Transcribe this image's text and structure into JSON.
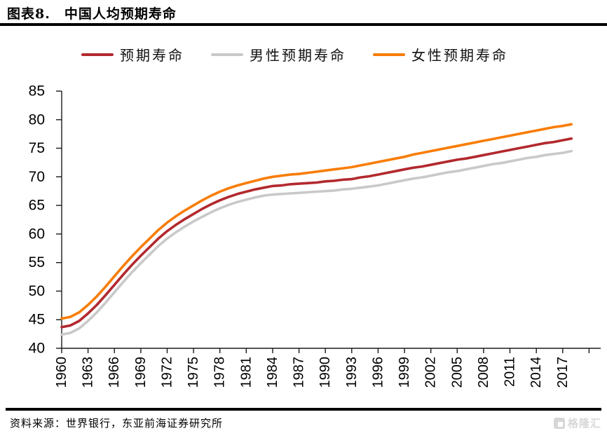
{
  "header": {
    "title": "图表8.　中国人均预期寿命"
  },
  "legend": {
    "items": [
      {
        "label": "预期寿命",
        "color": "#b2292e"
      },
      {
        "label": "男性预期寿命",
        "color": "#c9c9c9"
      },
      {
        "label": "女性预期寿命",
        "color": "#f87d06"
      }
    ]
  },
  "chart_data": {
    "type": "line",
    "title": "中国人均预期寿命",
    "xlabel": "",
    "ylabel": "",
    "ylim": [
      40,
      85
    ],
    "ytick_step": 5,
    "x_tick_labels": [
      "1960",
      "1963",
      "1966",
      "1969",
      "1972",
      "1975",
      "1978",
      "1981",
      "1984",
      "1987",
      "1990",
      "1993",
      "1996",
      "1999",
      "2002",
      "2005",
      "2008",
      "2011",
      "2014",
      "2017"
    ],
    "extra_unlabeled_tick_year": 2020,
    "grid": false,
    "legend_position": "top",
    "x": [
      1960,
      1961,
      1962,
      1963,
      1964,
      1965,
      1966,
      1967,
      1968,
      1969,
      1970,
      1971,
      1972,
      1973,
      1974,
      1975,
      1976,
      1977,
      1978,
      1979,
      1980,
      1981,
      1982,
      1983,
      1984,
      1985,
      1986,
      1987,
      1988,
      1989,
      1990,
      1991,
      1992,
      1993,
      1994,
      1995,
      1996,
      1997,
      1998,
      1999,
      2000,
      2001,
      2002,
      2003,
      2004,
      2005,
      2006,
      2007,
      2008,
      2009,
      2010,
      2011,
      2012,
      2013,
      2014,
      2015,
      2016,
      2017,
      2018
    ],
    "series": [
      {
        "name": "预期寿命",
        "color": "#b2292e",
        "values": [
          43.7,
          44.0,
          44.8,
          46.1,
          47.6,
          49.3,
          51.1,
          52.9,
          54.6,
          56.2,
          57.7,
          59.2,
          60.5,
          61.6,
          62.6,
          63.5,
          64.4,
          65.2,
          65.9,
          66.5,
          67.0,
          67.4,
          67.8,
          68.1,
          68.4,
          68.5,
          68.7,
          68.8,
          68.9,
          69.0,
          69.2,
          69.3,
          69.5,
          69.6,
          69.9,
          70.1,
          70.4,
          70.7,
          71.0,
          71.3,
          71.6,
          71.8,
          72.1,
          72.4,
          72.7,
          73.0,
          73.2,
          73.5,
          73.8,
          74.1,
          74.4,
          74.7,
          75.0,
          75.3,
          75.6,
          75.9,
          76.1,
          76.4,
          76.7
        ]
      },
      {
        "name": "男性预期寿命",
        "color": "#c9c9c9",
        "values": [
          42.4,
          42.7,
          43.5,
          44.8,
          46.3,
          48.0,
          49.8,
          51.6,
          53.3,
          54.9,
          56.4,
          57.9,
          59.2,
          60.3,
          61.3,
          62.2,
          63.0,
          63.8,
          64.5,
          65.1,
          65.6,
          66.0,
          66.4,
          66.7,
          66.9,
          67.0,
          67.1,
          67.2,
          67.3,
          67.4,
          67.5,
          67.6,
          67.8,
          67.9,
          68.1,
          68.3,
          68.5,
          68.8,
          69.1,
          69.4,
          69.7,
          69.9,
          70.2,
          70.5,
          70.8,
          71.0,
          71.3,
          71.6,
          71.9,
          72.2,
          72.4,
          72.7,
          73.0,
          73.3,
          73.5,
          73.8,
          74.0,
          74.2,
          74.5
        ]
      },
      {
        "name": "女性预期寿命",
        "color": "#f87d06",
        "values": [
          45.2,
          45.5,
          46.3,
          47.6,
          49.1,
          50.8,
          52.6,
          54.4,
          56.1,
          57.7,
          59.2,
          60.7,
          62.0,
          63.1,
          64.1,
          65.0,
          65.9,
          66.7,
          67.4,
          68.0,
          68.5,
          68.9,
          69.3,
          69.7,
          70.0,
          70.2,
          70.4,
          70.5,
          70.7,
          70.9,
          71.1,
          71.3,
          71.5,
          71.7,
          72.0,
          72.3,
          72.6,
          72.9,
          73.2,
          73.5,
          73.9,
          74.2,
          74.5,
          74.8,
          75.1,
          75.4,
          75.7,
          76.0,
          76.3,
          76.6,
          76.9,
          77.2,
          77.5,
          77.8,
          78.1,
          78.4,
          78.7,
          78.9,
          79.2
        ]
      }
    ]
  },
  "footer": {
    "source": "资料来源：世界银行，东亚前海证券研究所",
    "logo_text": "格隆汇"
  }
}
